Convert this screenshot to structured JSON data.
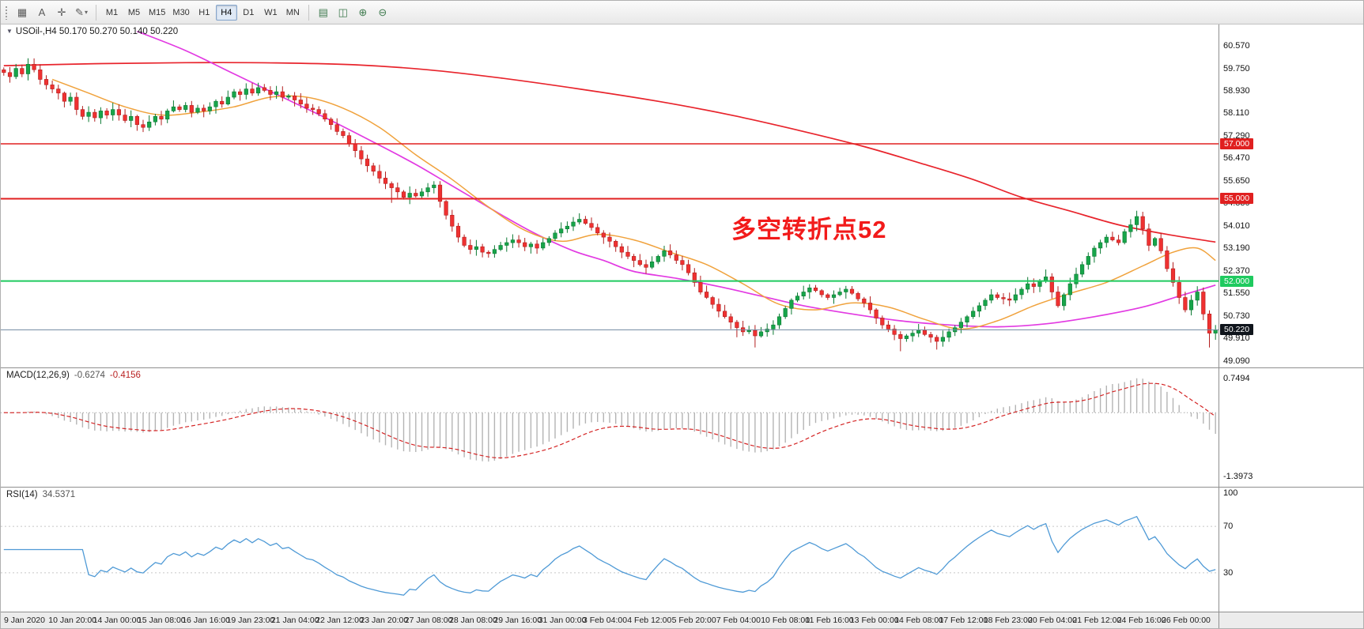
{
  "toolbar": {
    "left_icons": [
      {
        "name": "chart-templates-icon",
        "glyph": "▦"
      },
      {
        "name": "text-tool-icon",
        "glyph": "A"
      },
      {
        "name": "crosshair-tool-icon",
        "glyph": "✛"
      },
      {
        "name": "draw-tools-icon",
        "glyph": "✎",
        "caret": "▾"
      }
    ],
    "timeframes": [
      {
        "label": "M1"
      },
      {
        "label": "M5"
      },
      {
        "label": "M15"
      },
      {
        "label": "M30"
      },
      {
        "label": "H1"
      },
      {
        "label": "H4"
      },
      {
        "label": "D1"
      },
      {
        "label": "W1"
      },
      {
        "label": "MN"
      }
    ],
    "active_timeframe": "H4",
    "right_icons": [
      {
        "name": "new-chart-icon",
        "glyph": "▤"
      },
      {
        "name": "tile-windows-icon",
        "glyph": "◫"
      },
      {
        "name": "zoom-in-icon",
        "glyph": "⊕"
      },
      {
        "name": "zoom-out-icon",
        "glyph": "⊖"
      }
    ]
  },
  "chart_data": {
    "type": "candlestick",
    "title": "USOil-,H4 50.170 50.270 50.140 50.220",
    "collapse_arrow_glyph": "▼",
    "symbol": "USOil-",
    "timeframe": "H4",
    "last_ohlc": {
      "open": "50.170",
      "high": "50.270",
      "low": "50.140",
      "close": "50.220"
    },
    "price_axis": {
      "min": 48.85,
      "max": 61.35,
      "tick_labels": [
        "60.570",
        "59.750",
        "58.930",
        "58.110",
        "57.290",
        "56.470",
        "55.650",
        "54.830",
        "54.010",
        "53.190",
        "52.370",
        "51.550",
        "50.730",
        "49.910",
        "49.090"
      ]
    },
    "time_axis_labels": [
      "9 Jan 2020",
      "10 Jan 20:00",
      "14 Jan 00:00",
      "15 Jan 08:00",
      "16 Jan 16:00",
      "19 Jan 23:00",
      "21 Jan 04:00",
      "22 Jan 12:00",
      "23 Jan 20:00",
      "27 Jan 08:00",
      "28 Jan 08:00",
      "29 Jan 16:00",
      "31 Jan 00:00",
      "3 Feb 04:00",
      "4 Feb 12:00",
      "5 Feb 20:00",
      "7 Feb 04:00",
      "10 Feb 08:00",
      "11 Feb 16:00",
      "13 Feb 00:00",
      "14 Feb 08:00",
      "17 Feb 12:00",
      "18 Feb 23:00",
      "20 Feb 04:00",
      "21 Feb 12:00",
      "24 Feb 16:00",
      "26 Feb 00:00"
    ],
    "hlines": [
      {
        "value": 57.0,
        "label": "57.000",
        "color": "#e02020",
        "width": 1.6
      },
      {
        "value": 55.0,
        "label": "55.000",
        "color": "#e02020",
        "width": 2
      },
      {
        "value": 52.0,
        "label": "52.000",
        "color": "#1fca5f",
        "width": 2
      },
      {
        "value": 50.22,
        "label": "50.220",
        "color": "#7188a0",
        "width": 1,
        "tag_bg": "#10151c"
      }
    ],
    "current_price": "50.220",
    "first_open": 59.7,
    "candle_closes": [
      59.6,
      59.45,
      59.75,
      59.55,
      59.9,
      59.7,
      59.35,
      59.15,
      59.0,
      58.85,
      58.55,
      58.7,
      58.25,
      58.0,
      58.15,
      57.95,
      58.2,
      58.05,
      58.25,
      58.05,
      57.85,
      58.0,
      57.7,
      57.6,
      57.8,
      58.0,
      57.9,
      58.2,
      58.35,
      58.25,
      58.4,
      58.15,
      58.3,
      58.2,
      58.35,
      58.55,
      58.45,
      58.7,
      58.9,
      58.8,
      59.0,
      58.85,
      59.05,
      58.95,
      58.8,
      58.9,
      58.7,
      58.75,
      58.6,
      58.45,
      58.3,
      58.25,
      58.1,
      57.9,
      57.7,
      57.45,
      57.3,
      57.0,
      56.75,
      56.45,
      56.2,
      56.0,
      55.75,
      55.55,
      55.4,
      55.25,
      55.05,
      55.2,
      55.1,
      55.25,
      55.4,
      55.5,
      54.9,
      54.4,
      54.0,
      53.6,
      53.3,
      53.15,
      53.25,
      53.05,
      53.0,
      53.15,
      53.3,
      53.4,
      53.5,
      53.4,
      53.25,
      53.35,
      53.2,
      53.4,
      53.55,
      53.75,
      53.9,
      54.0,
      54.15,
      54.25,
      54.1,
      53.95,
      53.75,
      53.6,
      53.45,
      53.25,
      53.05,
      52.9,
      52.75,
      52.6,
      52.5,
      52.7,
      52.9,
      53.1,
      52.95,
      52.75,
      52.6,
      52.3,
      51.95,
      51.6,
      51.4,
      51.15,
      50.9,
      50.7,
      50.5,
      50.3,
      50.15,
      50.2,
      50.0,
      50.15,
      50.25,
      50.4,
      50.7,
      51.0,
      51.3,
      51.45,
      51.6,
      51.75,
      51.65,
      51.5,
      51.4,
      51.5,
      51.6,
      51.7,
      51.55,
      51.35,
      51.2,
      50.95,
      50.65,
      50.4,
      50.25,
      50.05,
      49.9,
      50.0,
      50.1,
      50.2,
      50.05,
      49.95,
      49.8,
      49.95,
      50.15,
      50.3,
      50.5,
      50.7,
      50.9,
      51.1,
      51.3,
      51.5,
      51.4,
      51.35,
      51.3,
      51.5,
      51.7,
      51.9,
      51.8,
      52.0,
      52.15,
      51.6,
      51.1,
      51.5,
      51.9,
      52.25,
      52.6,
      52.9,
      53.2,
      53.4,
      53.6,
      53.5,
      53.4,
      53.8,
      54.05,
      54.35,
      53.9,
      53.3,
      53.55,
      53.1,
      52.45,
      51.95,
      51.4,
      50.95,
      51.3,
      51.6,
      50.8,
      50.1,
      50.22
    ],
    "extreme_overrides": {
      "4": {
        "high": 60.12
      },
      "43": {
        "high": 59.18
      },
      "64": {
        "low": 54.85
      },
      "95": {
        "high": 54.47
      },
      "121": {
        "low": 49.95
      },
      "124": {
        "low": 49.58
      },
      "148": {
        "low": 49.44
      },
      "154": {
        "low": 49.5
      },
      "172": {
        "high": 52.42
      },
      "187": {
        "high": 54.56
      },
      "199": {
        "low": 49.58
      }
    },
    "moving_averages": [
      {
        "name": "ma-slow",
        "color": "#e8242c",
        "width": 1.7,
        "points": [
          [
            0,
            59.85
          ],
          [
            15,
            59.92
          ],
          [
            30,
            59.96
          ],
          [
            45,
            59.95
          ],
          [
            58,
            59.88
          ],
          [
            70,
            59.7
          ],
          [
            82,
            59.4
          ],
          [
            95,
            59.0
          ],
          [
            108,
            58.55
          ],
          [
            120,
            58.05
          ],
          [
            132,
            57.45
          ],
          [
            142,
            56.9
          ],
          [
            152,
            56.25
          ],
          [
            160,
            55.7
          ],
          [
            168,
            55.05
          ],
          [
            176,
            54.55
          ],
          [
            184,
            54.05
          ],
          [
            192,
            53.7
          ],
          [
            200,
            53.42
          ]
        ]
      },
      {
        "name": "ma-mid",
        "color": "#e23ae2",
        "width": 1.7,
        "points": [
          [
            22,
            61.1
          ],
          [
            30,
            60.4
          ],
          [
            38,
            59.55
          ],
          [
            46,
            58.7
          ],
          [
            54,
            57.85
          ],
          [
            62,
            56.95
          ],
          [
            68,
            56.25
          ],
          [
            73,
            55.6
          ],
          [
            78,
            54.95
          ],
          [
            83,
            54.3
          ],
          [
            88,
            53.7
          ],
          [
            94,
            53.1
          ],
          [
            99,
            52.75
          ],
          [
            104,
            52.35
          ],
          [
            111,
            52.1
          ],
          [
            118,
            51.8
          ],
          [
            125,
            51.45
          ],
          [
            132,
            51.1
          ],
          [
            140,
            50.8
          ],
          [
            148,
            50.55
          ],
          [
            156,
            50.4
          ],
          [
            164,
            50.33
          ],
          [
            172,
            50.44
          ],
          [
            180,
            50.7
          ],
          [
            188,
            51.05
          ],
          [
            194,
            51.45
          ],
          [
            200,
            51.85
          ]
        ]
      },
      {
        "name": "ma-fast",
        "color": "#f0a23c",
        "width": 1.5,
        "points": [
          [
            8,
            59.35
          ],
          [
            14,
            58.85
          ],
          [
            20,
            58.35
          ],
          [
            26,
            58.05
          ],
          [
            32,
            58.15
          ],
          [
            38,
            58.35
          ],
          [
            44,
            58.7
          ],
          [
            50,
            58.7
          ],
          [
            56,
            58.3
          ],
          [
            62,
            57.6
          ],
          [
            68,
            56.6
          ],
          [
            74,
            55.7
          ],
          [
            80,
            54.7
          ],
          [
            86,
            53.85
          ],
          [
            92,
            53.45
          ],
          [
            98,
            53.7
          ],
          [
            104,
            53.5
          ],
          [
            110,
            53.05
          ],
          [
            116,
            52.6
          ],
          [
            122,
            51.9
          ],
          [
            128,
            51.15
          ],
          [
            134,
            50.95
          ],
          [
            140,
            51.2
          ],
          [
            146,
            51.05
          ],
          [
            152,
            50.6
          ],
          [
            158,
            50.25
          ],
          [
            164,
            50.55
          ],
          [
            170,
            51.1
          ],
          [
            176,
            51.55
          ],
          [
            182,
            51.95
          ],
          [
            188,
            52.55
          ],
          [
            193,
            53.05
          ],
          [
            197,
            53.2
          ],
          [
            200,
            52.75
          ]
        ]
      }
    ],
    "annotation": {
      "text": "多空转折点52",
      "color": "#f21b1b"
    },
    "candle_colors": {
      "up_fill": "#17a54a",
      "up_stroke": "#0c7a33",
      "down_fill": "#ef3131",
      "down_stroke": "#b31f1f"
    },
    "macd": {
      "label": "MACD(12,26,9)",
      "main_value": "-0.6274",
      "signal_value": "-0.4156",
      "fast": 12,
      "slow": 26,
      "signal": 9,
      "range": [
        -1.55,
        0.9
      ],
      "axis_top_label": "0.7494",
      "axis_bottom_label": "-1.3973",
      "hist_color": "#b4b4b4",
      "signal_color": "#d42424"
    },
    "rsi": {
      "label": "RSI(14)",
      "value": "34.5371",
      "period": 14,
      "range": [
        0,
        100
      ],
      "levels": [
        70,
        30
      ],
      "axis_labels": [
        "100",
        "70",
        "30"
      ],
      "line_color": "#4f9ad6",
      "level_color": "#c8c8c8"
    }
  }
}
